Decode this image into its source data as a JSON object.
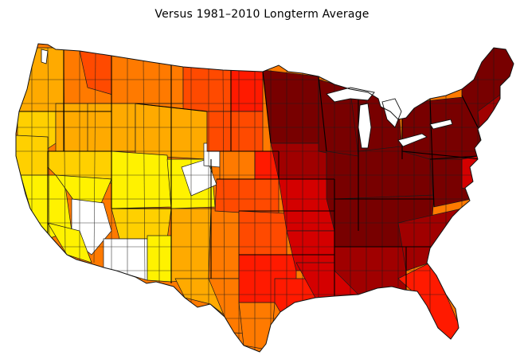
{
  "title": "Versus 1981–2010 Longterm Average",
  "map": {
    "subject": "Contiguous United States climate divisions",
    "palette": {
      "white": "#ffffff",
      "yellow": "#fff200",
      "gold": "#ffd000",
      "amber": "#ffaa00",
      "orange": "#ff7a00",
      "red_orange": "#ff4a00",
      "red": "#ff1a00",
      "crimson": "#d40000",
      "dark_red": "#a00000",
      "maroon": "#780000"
    }
  }
}
